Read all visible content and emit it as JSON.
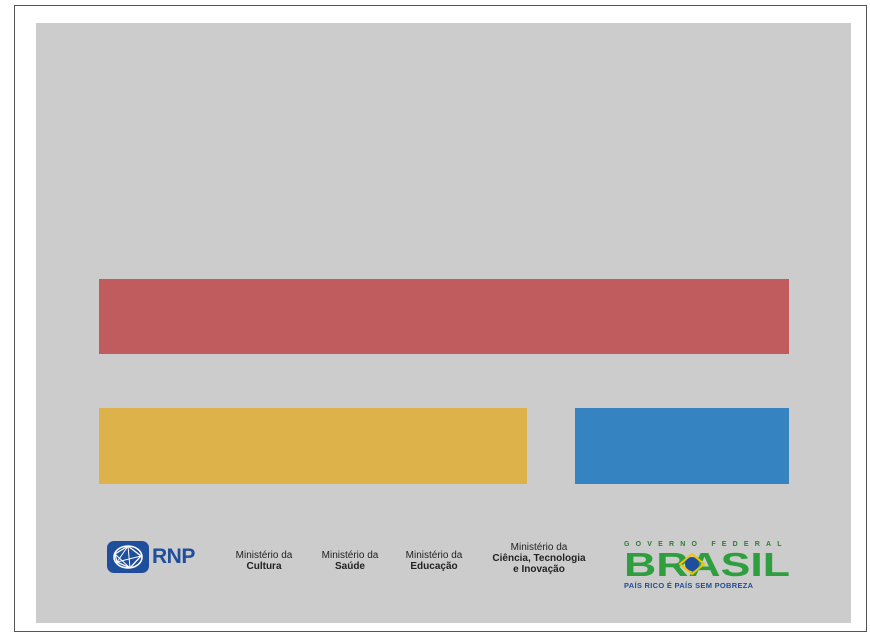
{
  "colors": {
    "canvas": "#cccccc",
    "red": "#c05b5e",
    "yellow": "#ddb24b",
    "blue": "#3584c1"
  },
  "logos": {
    "rnp": {
      "text": "RNP"
    },
    "ministries": [
      {
        "top": "Ministério da",
        "name": "Cultura"
      },
      {
        "top": "Ministério da",
        "name": "Saúde"
      },
      {
        "top": "Ministério da",
        "name": "Educação"
      },
      {
        "top": "Ministério da",
        "name_line1": "Ciência, Tecnologia",
        "name_line2": "e Inovação"
      }
    ],
    "brasil": {
      "top": "GOVERNO FEDERAL",
      "word": "BRASIL",
      "bottom": "PAÍS RICO É PAÍS SEM POBREZA"
    }
  }
}
